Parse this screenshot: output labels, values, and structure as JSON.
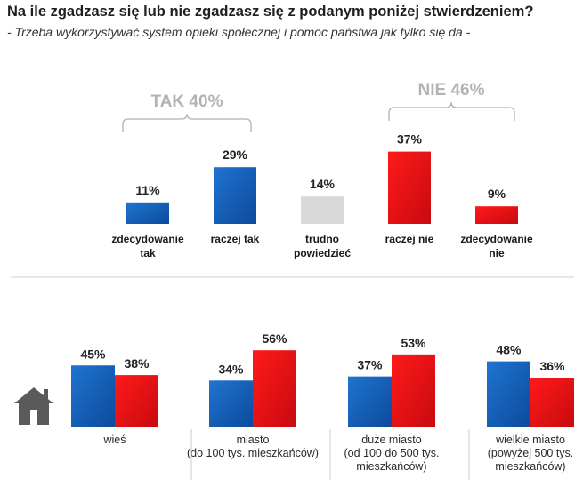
{
  "header": {
    "title": "Na ile zgadzasz się lub nie zgadzasz się z podanym poniżej stwierdzeniem?",
    "subtitle": "- Trzeba wykorzystywać system opieki społecznej i pomoc państwa jak tylko się da -"
  },
  "colors": {
    "blue": "#1560bd",
    "red": "#e81218",
    "gray": "#d9d9d9",
    "bracket": "#b0b0b0",
    "icon": "#5a5a5a"
  },
  "chart_data": [
    {
      "type": "bar",
      "unit": "%",
      "categories": [
        [
          "zdecydowanie",
          "tak"
        ],
        [
          "raczej tak"
        ],
        [
          "trudno",
          "powiedzieć"
        ],
        [
          "raczej nie"
        ],
        [
          "zdecydowanie",
          "nie"
        ]
      ],
      "values": [
        11,
        29,
        14,
        37,
        9
      ],
      "value_labels": [
        "11%",
        "29%",
        "14%",
        "37%",
        "9%"
      ],
      "bar_colors": [
        "blue",
        "blue",
        "gray",
        "red",
        "red"
      ],
      "groups": [
        {
          "label": "TAK 40%",
          "value": 40,
          "from": 0,
          "to": 1
        },
        {
          "label": "NIE 46%",
          "value": 46,
          "from": 3,
          "to": 4
        }
      ]
    },
    {
      "type": "bar",
      "unit": "%",
      "categories": [
        [
          "wieś"
        ],
        [
          "miasto",
          "(do 100 tys. mieszkańców)"
        ],
        [
          "duże miasto",
          "(od 100 do 500 tys.",
          "mieszkańców)"
        ],
        [
          "wielkie miasto",
          "(powyżej 500 tys.",
          "mieszkańców)"
        ]
      ],
      "series": [
        {
          "name": "tak",
          "color": "blue",
          "values": [
            45,
            34,
            37,
            48
          ],
          "value_labels": [
            "45%",
            "34%",
            "37%",
            "48%"
          ]
        },
        {
          "name": "nie",
          "color": "red",
          "values": [
            38,
            56,
            53,
            36
          ],
          "value_labels": [
            "38%",
            "56%",
            "53%",
            "36%"
          ]
        }
      ],
      "icon": "house-icon"
    }
  ]
}
